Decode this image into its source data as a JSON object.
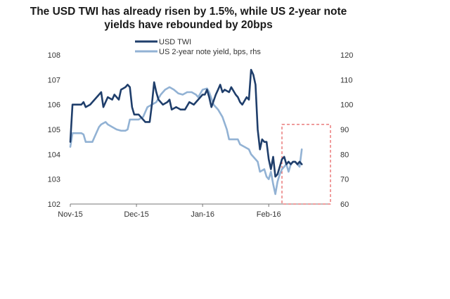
{
  "chart_data": {
    "type": "line",
    "title_lines": [
      "The USD TWI has already risen by 1.5%, while US 2-year note",
      "yields have rebounded by 20bps"
    ],
    "legend": [
      {
        "label": "USD TWI"
      },
      {
        "label": "US 2-year note yield, bps, rhs"
      }
    ],
    "x_ticks": [
      "Nov-15",
      "Dec-15",
      "Jan-16",
      "Feb-16"
    ],
    "x_tick_index": [
      0,
      30,
      60,
      90
    ],
    "x_range": [
      0,
      118
    ],
    "y_left": {
      "min": 102,
      "max": 108,
      "ticks": [
        102,
        103,
        104,
        105,
        106,
        107,
        108
      ]
    },
    "y_right": {
      "min": 60,
      "max": 120,
      "ticks": [
        60,
        70,
        80,
        90,
        100,
        110,
        120
      ]
    },
    "highlight_box": {
      "x_from": 96,
      "x_to": 118,
      "y_left_from": 102,
      "y_left_to": 105.2
    },
    "colors": {
      "usd_twi": "#1f3e6b",
      "yield": "#92b2d4",
      "box": "#e03a3a",
      "axis": "#777777"
    },
    "series": [
      {
        "name": "USD TWI",
        "axis": "left",
        "points": [
          [
            0,
            104.5
          ],
          [
            1,
            106.0
          ],
          [
            3,
            106.0
          ],
          [
            5,
            106.0
          ],
          [
            6,
            106.1
          ],
          [
            7,
            105.9
          ],
          [
            9,
            106.0
          ],
          [
            10,
            106.1
          ],
          [
            12,
            106.3
          ],
          [
            13,
            106.4
          ],
          [
            14,
            106.5
          ],
          [
            15,
            105.9
          ],
          [
            17,
            106.3
          ],
          [
            19,
            106.2
          ],
          [
            20,
            106.4
          ],
          [
            22,
            106.2
          ],
          [
            23,
            106.6
          ],
          [
            25,
            106.7
          ],
          [
            26,
            106.8
          ],
          [
            27,
            106.7
          ],
          [
            28,
            105.9
          ],
          [
            29,
            105.6
          ],
          [
            31,
            105.6
          ],
          [
            32,
            105.5
          ],
          [
            34,
            105.3
          ],
          [
            36,
            105.3
          ],
          [
            37,
            106.0
          ],
          [
            38,
            106.9
          ],
          [
            39,
            106.5
          ],
          [
            40,
            106.2
          ],
          [
            42,
            106.0
          ],
          [
            44,
            106.1
          ],
          [
            45,
            106.2
          ],
          [
            46,
            105.8
          ],
          [
            48,
            105.9
          ],
          [
            50,
            105.8
          ],
          [
            52,
            105.8
          ],
          [
            54,
            106.1
          ],
          [
            56,
            106.0
          ],
          [
            58,
            106.2
          ],
          [
            60,
            106.4
          ],
          [
            61,
            106.4
          ],
          [
            62,
            106.6
          ],
          [
            63,
            106.3
          ],
          [
            64,
            105.9
          ],
          [
            66,
            106.4
          ],
          [
            67,
            106.6
          ],
          [
            68,
            106.8
          ],
          [
            69,
            106.5
          ],
          [
            70,
            106.6
          ],
          [
            72,
            106.5
          ],
          [
            73,
            106.7
          ],
          [
            75,
            106.4
          ],
          [
            76,
            106.3
          ],
          [
            77,
            106.1
          ],
          [
            78,
            106.0
          ],
          [
            80,
            106.3
          ],
          [
            81,
            106.2
          ],
          [
            82,
            107.4
          ],
          [
            83,
            107.2
          ],
          [
            84,
            106.8
          ],
          [
            85,
            105.0
          ],
          [
            86,
            104.2
          ],
          [
            87,
            104.6
          ],
          [
            88,
            104.5
          ],
          [
            89,
            104.5
          ],
          [
            90,
            103.8
          ],
          [
            91,
            103.4
          ],
          [
            92,
            103.9
          ],
          [
            93,
            103.1
          ],
          [
            94,
            103.2
          ],
          [
            95,
            103.5
          ],
          [
            96,
            103.8
          ],
          [
            97,
            103.9
          ],
          [
            98,
            103.6
          ],
          [
            99,
            103.7
          ],
          [
            100,
            103.6
          ],
          [
            101,
            103.7
          ],
          [
            102,
            103.7
          ],
          [
            103,
            103.6
          ],
          [
            104,
            103.7
          ],
          [
            105,
            103.6
          ]
        ]
      },
      {
        "name": "US 2-year note yield, bps, rhs",
        "axis": "right",
        "points": [
          [
            0,
            83.0
          ],
          [
            1,
            88.5
          ],
          [
            3,
            88.5
          ],
          [
            5,
            88.5
          ],
          [
            6,
            88.0
          ],
          [
            7,
            85.0
          ],
          [
            9,
            85.0
          ],
          [
            10,
            85.0
          ],
          [
            11,
            87.0
          ],
          [
            13,
            91.0
          ],
          [
            14,
            92.0
          ],
          [
            16,
            93.0
          ],
          [
            17,
            92.0
          ],
          [
            19,
            91.0
          ],
          [
            21,
            90.0
          ],
          [
            23,
            89.5
          ],
          [
            25,
            89.5
          ],
          [
            26,
            90.0
          ],
          [
            27,
            94.0
          ],
          [
            29,
            94.0
          ],
          [
            31,
            94.0
          ],
          [
            33,
            95.0
          ],
          [
            35,
            99.0
          ],
          [
            37,
            100.0
          ],
          [
            39,
            101.0
          ],
          [
            41,
            104.0
          ],
          [
            43,
            106.0
          ],
          [
            45,
            107.0
          ],
          [
            47,
            106.0
          ],
          [
            49,
            104.5
          ],
          [
            51,
            104.0
          ],
          [
            53,
            105.0
          ],
          [
            55,
            105.0
          ],
          [
            57,
            104.0
          ],
          [
            58,
            103.0
          ],
          [
            60,
            106.0
          ],
          [
            62,
            106.5
          ],
          [
            63,
            105.0
          ],
          [
            65,
            100.0
          ],
          [
            67,
            98.0
          ],
          [
            69,
            95.0
          ],
          [
            71,
            90.0
          ],
          [
            72,
            86.0
          ],
          [
            74,
            86.0
          ],
          [
            76,
            86.0
          ],
          [
            77,
            84.0
          ],
          [
            79,
            83.0
          ],
          [
            81,
            82.0
          ],
          [
            82,
            80.0
          ],
          [
            84,
            78.0
          ],
          [
            85,
            77.0
          ],
          [
            86,
            73.0
          ],
          [
            88,
            74.0
          ],
          [
            89,
            71.0
          ],
          [
            90,
            70.0
          ],
          [
            91,
            73.0
          ],
          [
            92,
            68.0
          ],
          [
            93,
            64.0
          ],
          [
            94,
            69.0
          ],
          [
            95,
            72.0
          ],
          [
            96,
            74.0
          ],
          [
            97,
            75.0
          ],
          [
            98,
            76.0
          ],
          [
            99,
            73.0
          ],
          [
            100,
            76.0
          ],
          [
            101,
            77.0
          ],
          [
            102,
            77.0
          ],
          [
            103,
            76.0
          ],
          [
            104,
            75.0
          ],
          [
            105,
            82.0
          ]
        ]
      }
    ]
  }
}
